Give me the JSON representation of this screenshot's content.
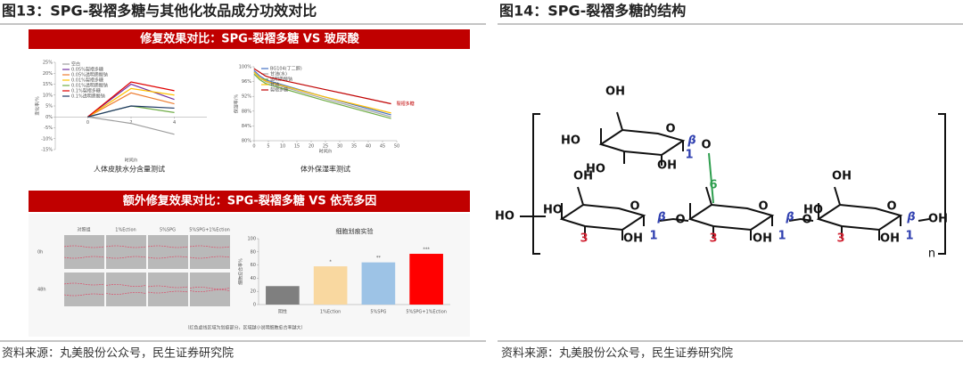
{
  "left": {
    "title": "图13：SPG-裂褶多糖与其他化妆品成分功效对比",
    "banner1": "修复效果对比：SPG-裂褶多糖 VS 玻尿酸",
    "caption1": "人体皮肤水分含量测试",
    "caption2": "体外保湿率测试",
    "banner2": "额外修复效果对比：SPG-裂褶多糖 VS 依克多因",
    "photo_columns": [
      "对照组",
      "1%Ection",
      "5%SPG",
      "5%SPG+1%Ection"
    ],
    "photo_rows": [
      "0h",
      "48h"
    ],
    "footnote": "（红色虚线区域为划痕部分，区域越小说明细胞愈合率越大）",
    "source": "资料来源：丸美股份公众号，民生证券研究院"
  },
  "chart_data": [
    {
      "type": "line",
      "xlabel": "时间/h",
      "ylabel": "变化率/%",
      "x": [
        0,
        2,
        4
      ],
      "xlim": [
        -1.5,
        5.5
      ],
      "xticks": [
        0,
        2,
        4
      ],
      "ylim": [
        -15,
        25
      ],
      "yticks": [
        {
          "value": -15,
          "label": "-15%"
        },
        {
          "value": -10,
          "label": "-10%"
        },
        {
          "value": -5,
          "label": "-5%"
        },
        {
          "value": 0,
          "label": "0%"
        },
        {
          "value": 5,
          "label": "5%"
        },
        {
          "value": 10,
          "label": "10%"
        },
        {
          "value": 15,
          "label": "15%"
        },
        {
          "value": 20,
          "label": "20%"
        },
        {
          "value": 25,
          "label": "25%"
        }
      ],
      "series": [
        {
          "name": "空白",
          "color": "#9e9e9e",
          "values": [
            0,
            -3,
            -8
          ]
        },
        {
          "name": "0.05%裂褶多糖",
          "color": "#7030a0",
          "values": [
            0,
            15,
            8
          ]
        },
        {
          "name": "0.05%透明质酸钠",
          "color": "#ed7d31",
          "values": [
            0,
            11,
            6
          ]
        },
        {
          "name": "0.01%裂褶多糖",
          "color": "#ffc000",
          "values": [
            0,
            13,
            10
          ]
        },
        {
          "name": "0.01%透明质酸钠",
          "color": "#70ad47",
          "values": [
            0,
            5,
            2
          ]
        },
        {
          "name": "0.1%裂褶多糖",
          "color": "#e00000",
          "values": [
            0,
            16,
            12
          ]
        },
        {
          "name": "0.1%透明质酸钠",
          "color": "#1f3864",
          "values": [
            0,
            5,
            4
          ]
        }
      ]
    },
    {
      "type": "line",
      "xlabel": "时间/h",
      "ylabel": "保湿率/%",
      "x": [
        0,
        2,
        4,
        6,
        24,
        48
      ],
      "xlim": [
        0,
        50
      ],
      "xticks": [
        0,
        5,
        10,
        15,
        20,
        25,
        30,
        35,
        40,
        45,
        50
      ],
      "ylim": [
        80,
        100
      ],
      "yticks": [
        {
          "value": 80,
          "label": "80%"
        },
        {
          "value": 84,
          "label": "84%"
        },
        {
          "value": 88,
          "label": "88%"
        },
        {
          "value": 92,
          "label": "92%"
        },
        {
          "value": 96,
          "label": "96%"
        },
        {
          "value": 100,
          "label": "100%"
        }
      ],
      "annotation": "裂褶多糖",
      "series": [
        {
          "name": "BG104(丁二醇)",
          "color": "#4472c4",
          "values": [
            99,
            97.5,
            96.5,
            96,
            92,
            87
          ]
        },
        {
          "name": "甘油(水)",
          "color": "#a5a5a5",
          "values": [
            98.5,
            97,
            96,
            95.5,
            91.5,
            86.5
          ]
        },
        {
          "name": "透明质酸钠",
          "color": "#70ad47",
          "values": [
            98,
            96.5,
            95.5,
            95,
            91,
            86
          ]
        },
        {
          "name": "甘油",
          "color": "#ffc000",
          "values": [
            98.5,
            97,
            96.2,
            95.7,
            92,
            87.5
          ]
        },
        {
          "name": "裂褶多糖",
          "color": "#c00000",
          "values": [
            99.5,
            98.5,
            97.5,
            97,
            94,
            90
          ]
        }
      ]
    },
    {
      "type": "bar",
      "title": "细胞划痕实验",
      "ylabel": "细胞愈合率%",
      "categories": [
        "阴性",
        "1%Ection",
        "5%SPG",
        "5%SPG+1%Ection"
      ],
      "values": [
        28,
        58,
        64,
        77
      ],
      "colors": [
        "#7f7f7f",
        "#f9d8a0",
        "#9dc3e6",
        "#ff0000"
      ],
      "significance": [
        null,
        "*",
        "**",
        "***"
      ],
      "ylim": [
        0,
        100
      ],
      "yticks": [
        0,
        20,
        40,
        60,
        80,
        100
      ]
    }
  ],
  "right": {
    "title": "图14：SPG-裂褶多糖的结构",
    "labels": [
      "OH",
      "HO",
      "HO",
      "OH",
      "O",
      "β",
      "1",
      "O",
      "6",
      "OH",
      "HO",
      "HO",
      "3",
      "OH",
      "1",
      "O",
      "β",
      "O",
      "O",
      "3",
      "OH",
      "1",
      "β",
      "O",
      "OH",
      "HO",
      "O",
      "β",
      "3",
      "OH",
      "1",
      "OH",
      "n"
    ],
    "source": "资料来源：丸美股份公众号，民生证券研究院"
  }
}
